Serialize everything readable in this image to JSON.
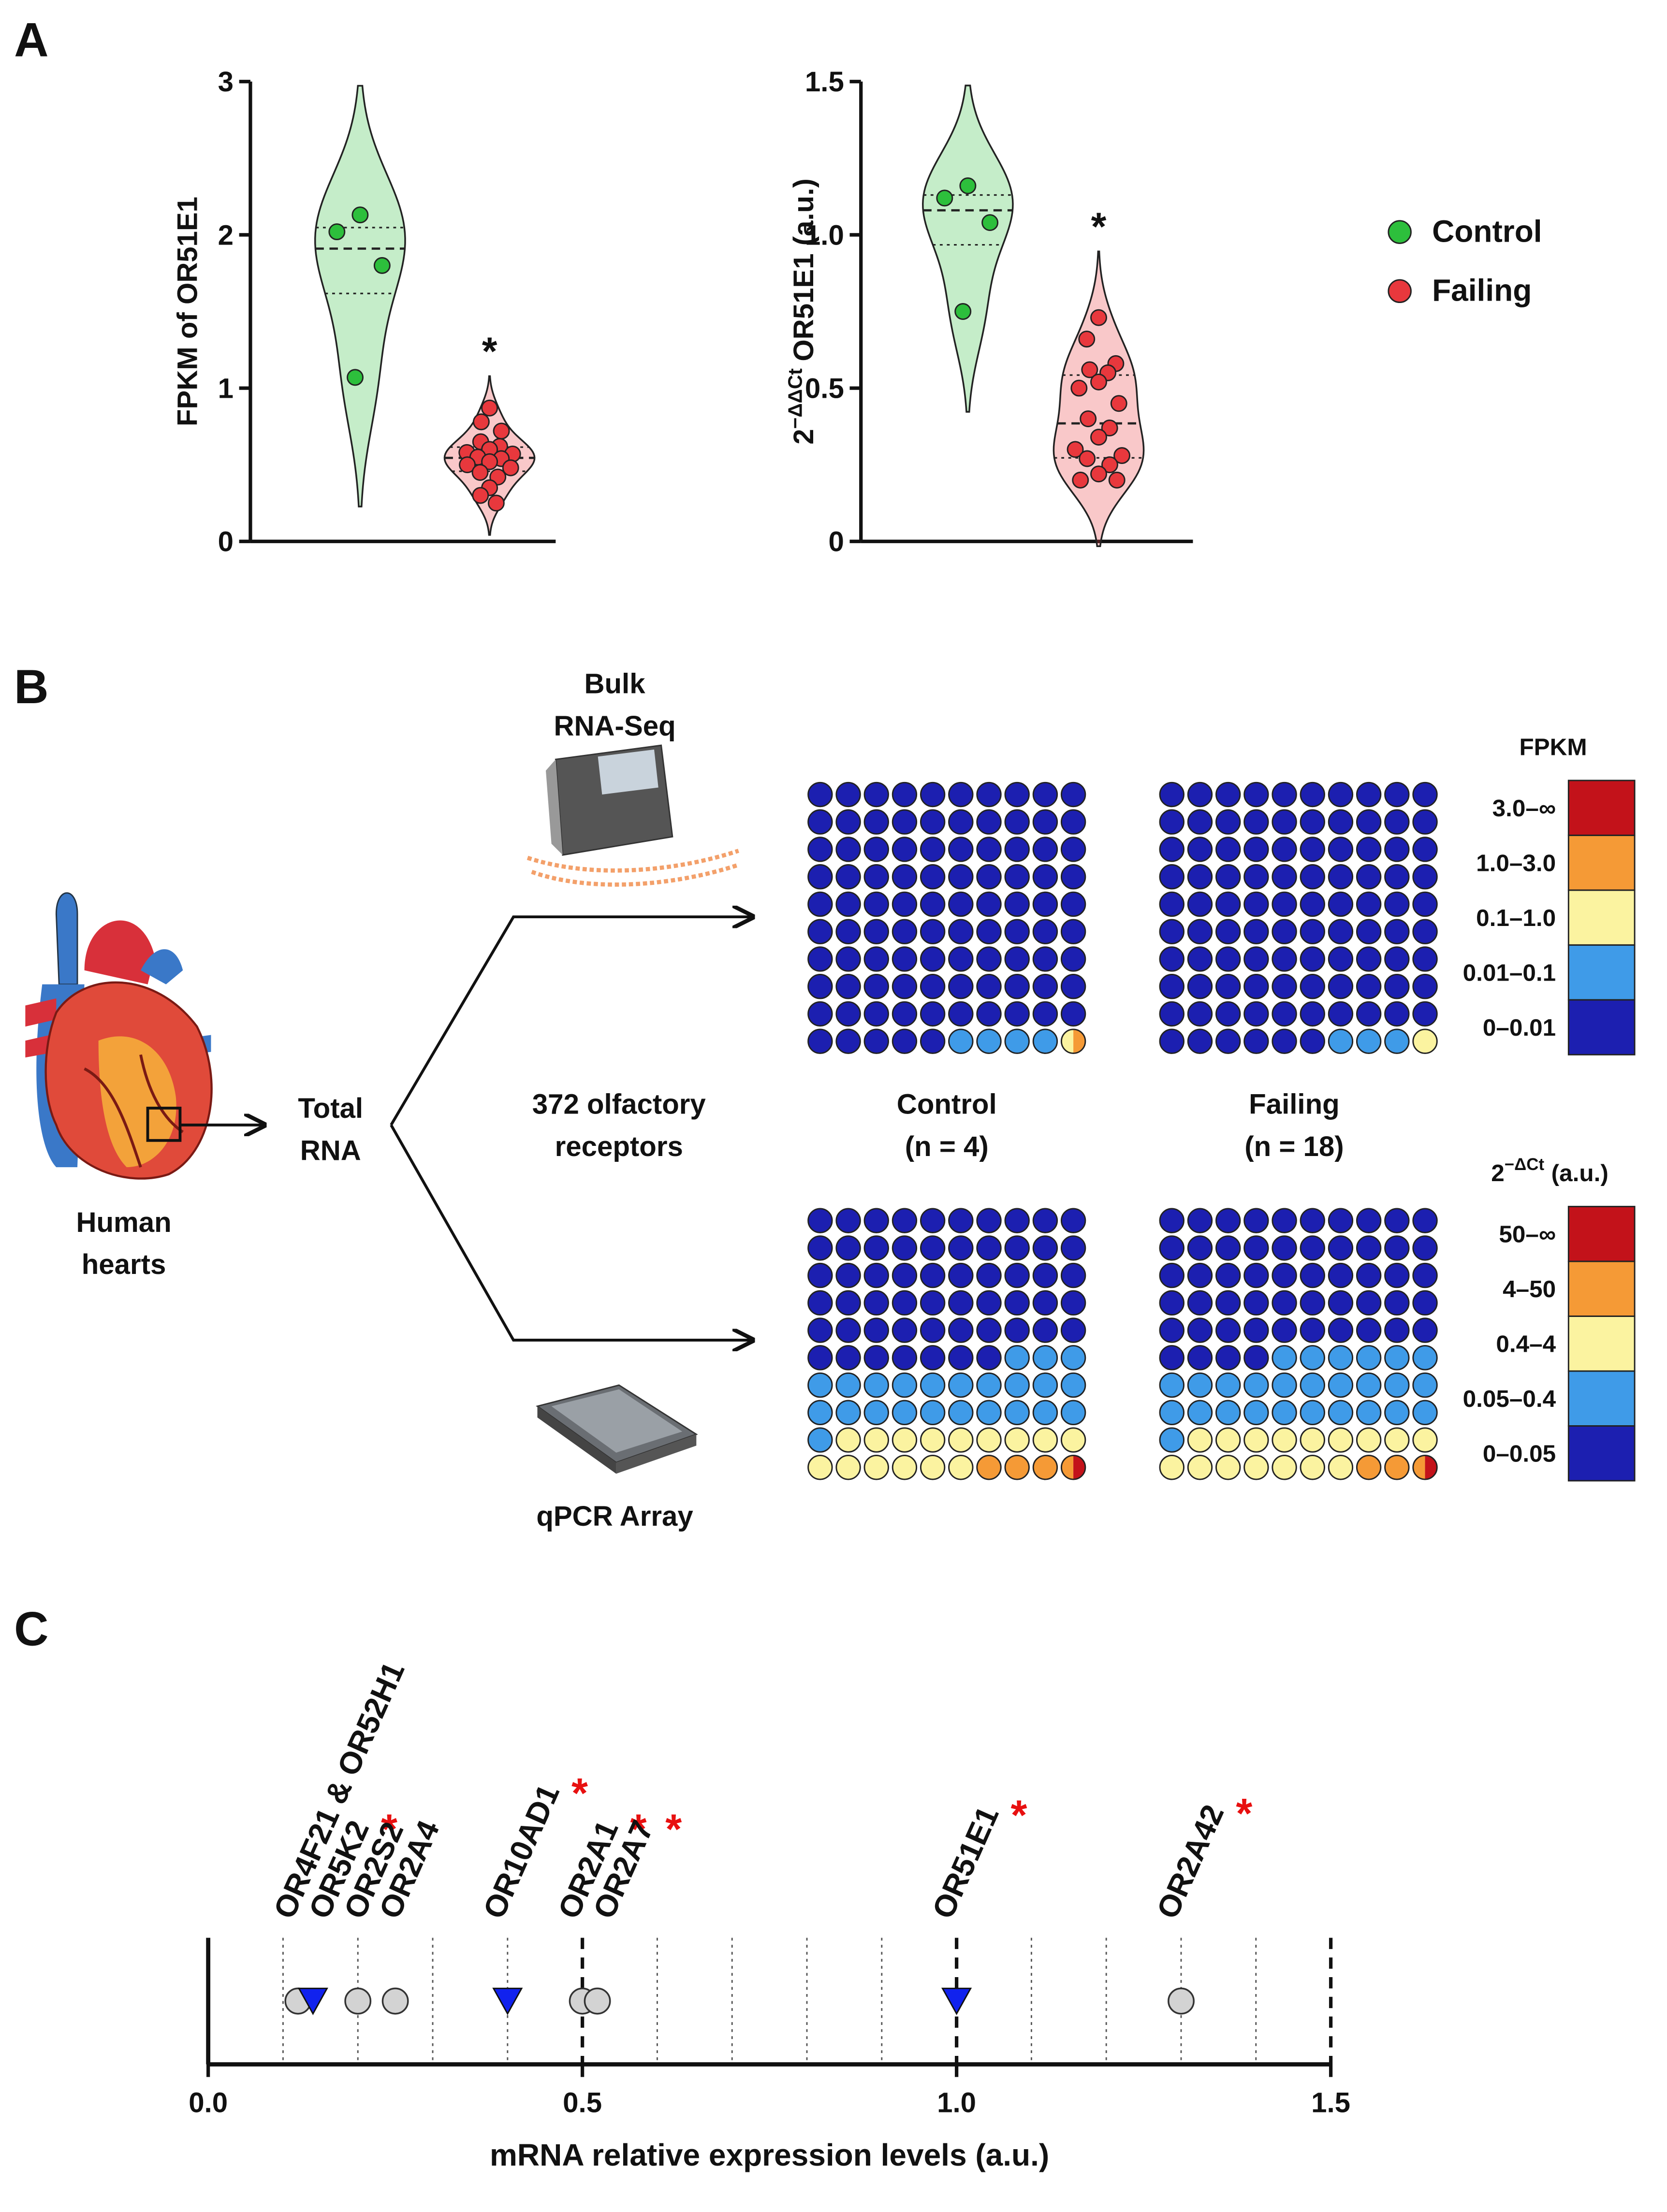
{
  "panel_labels": [
    "A",
    "B",
    "C"
  ],
  "chart_data": [
    {
      "type": "violin",
      "ylabel": "FPKM of OR51E1",
      "ylim": [
        0,
        3
      ],
      "yticks": [
        0,
        1,
        2,
        3
      ],
      "series": [
        {
          "name": "Control",
          "color": "#2dbf3c",
          "values": [
            2.13,
            2.02,
            1.8,
            1.07
          ]
        },
        {
          "name": "Failing",
          "color": "#e8383d",
          "annotation": "*",
          "values": [
            0.87,
            0.78,
            0.72,
            0.65,
            0.62,
            0.6,
            0.58,
            0.57,
            0.55,
            0.54,
            0.52,
            0.5,
            0.48,
            0.45,
            0.42,
            0.35,
            0.3,
            0.25
          ]
        }
      ]
    },
    {
      "type": "violin",
      "ylabel": {
        "base": "2",
        "sup": "−ΔΔCt",
        "text": "OR51E1 (a.u.)"
      },
      "ylim": [
        0,
        1.5
      ],
      "yticks": [
        0,
        0.5,
        {
          "value": 1,
          "label": "1.0"
        },
        1.5
      ],
      "legend": "right",
      "series": [
        {
          "name": "Control",
          "color": "#2dbf3c",
          "values": [
            1.16,
            1.12,
            1.04,
            0.75
          ]
        },
        {
          "name": "Failing",
          "color": "#e8383d",
          "annotation": "*",
          "values": [
            0.73,
            0.66,
            0.58,
            0.56,
            0.55,
            0.52,
            0.5,
            0.45,
            0.4,
            0.37,
            0.34,
            0.3,
            0.28,
            0.27,
            0.25,
            0.22,
            0.2,
            0.2
          ]
        }
      ]
    },
    {
      "type": "strip",
      "xlabel": "mRNA relative expression levels (a.u.)",
      "xlim": [
        0,
        1.5
      ],
      "xticks": [
        {
          "value": 0,
          "label": "0.0"
        },
        0.5,
        {
          "value": 1,
          "label": "1.0"
        },
        1.5
      ],
      "minor_xticks": [
        0.1,
        0.2,
        0.3,
        0.4,
        0.6,
        0.7,
        0.8,
        0.9,
        1.1,
        1.2,
        1.3,
        1.4
      ],
      "points": [
        {
          "label": "OR4F21 & OR52H1",
          "x": 0.12,
          "marker": "circle"
        },
        {
          "label": "OR5K2",
          "x": 0.14,
          "marker": "triangle",
          "annotation": "*"
        },
        {
          "label": "OR2S2",
          "x": 0.2,
          "marker": "circle"
        },
        {
          "label": "OR2A4",
          "x": 0.25,
          "marker": "circle"
        },
        {
          "label": "OR10AD1",
          "x": 0.4,
          "marker": "triangle",
          "annotation": "*"
        },
        {
          "label": "OR2A1",
          "x": 0.5,
          "marker": "circle",
          "annotation": "*"
        },
        {
          "label": "OR2A7",
          "x": 0.52,
          "marker": "circle",
          "annotation": "*"
        },
        {
          "label": "OR51E1",
          "x": 1.0,
          "marker": "triangle",
          "annotation": "*"
        },
        {
          "label": "OR2A42",
          "x": 1.3,
          "marker": "circle",
          "annotation": "*"
        }
      ]
    }
  ],
  "diagram": {
    "heart_label": [
      "Human",
      "hearts"
    ],
    "total_rna": [
      "Total",
      "RNA"
    ],
    "bulk": [
      "Bulk",
      "RNA-Seq"
    ],
    "qpcr": "qPCR Array",
    "receptors": [
      "372 olfactory",
      "receptors"
    ],
    "groups": [
      {
        "name": "Control",
        "n": "(n = 4)"
      },
      {
        "name": "Failing",
        "n": "(n = 18)"
      }
    ],
    "colors": [
      "#1c1fb0",
      "#3f9be8",
      "#fbf3a0",
      "#f59a36",
      "#c3121a"
    ],
    "grids": [
      {
        "values": [
          95,
          4,
          0.5,
          0.5,
          0
        ]
      },
      {
        "values": [
          96,
          3,
          1,
          0,
          0
        ]
      },
      {
        "values": [
          57,
          24,
          15,
          3.5,
          0.5
        ]
      },
      {
        "values": [
          54,
          27,
          16,
          2.5,
          0.5
        ]
      }
    ],
    "legends": [
      {
        "title": "FPKM",
        "labels": [
          "0–0.01",
          "0.01–0.1",
          "0.1–1.0",
          "1.0–3.0",
          "3.0–∞"
        ]
      },
      {
        "title": {
          "base": "2",
          "sup": "−ΔCt",
          "text": "(a.u.)"
        },
        "labels": [
          "0–0.05",
          "0.05–0.4",
          "0.4–4",
          "4–50",
          "50–∞"
        ]
      }
    ]
  }
}
